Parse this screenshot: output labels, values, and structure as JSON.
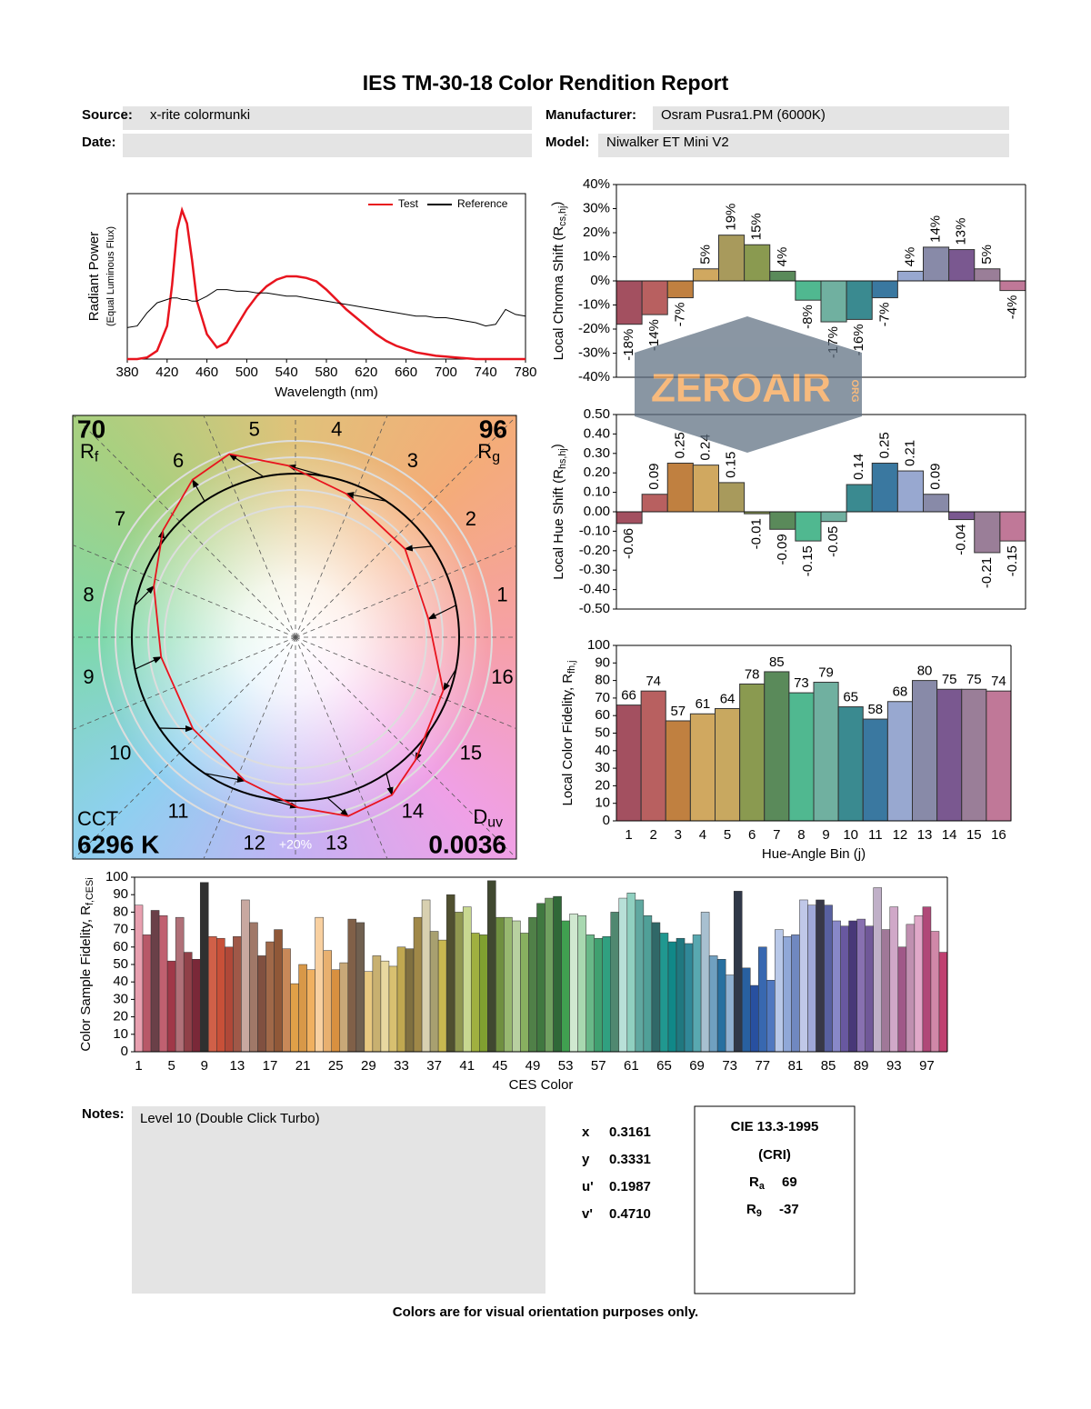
{
  "header": {
    "title": "IES TM-30-18 Color Rendition Report",
    "source_label": "Source:",
    "source": "x-rite colormunki",
    "manufacturer_label": "Manufacturer:",
    "manufacturer": "Osram Pusra1.PM (6000K)",
    "date_label": "Date:",
    "model_label": "Model:",
    "model": "Niwalker ET Mini V2"
  },
  "chart_data": [
    {
      "type": "line",
      "xlabel": "Wavelength (nm)",
      "ylabel": "Radiant Power",
      "ylabel_note": "(Equal Luminous Flux)",
      "legend": "upper right",
      "x": [
        380,
        390,
        400,
        410,
        420,
        425,
        430,
        435,
        440,
        445,
        450,
        460,
        470,
        480,
        490,
        500,
        510,
        520,
        530,
        540,
        550,
        560,
        570,
        580,
        590,
        600,
        610,
        620,
        630,
        640,
        650,
        660,
        670,
        680,
        690,
        700,
        710,
        720,
        730,
        740,
        750,
        760,
        770,
        780
      ],
      "xlim": [
        380,
        780
      ],
      "xticks": [
        380,
        420,
        460,
        500,
        540,
        580,
        620,
        660,
        700,
        740,
        780
      ],
      "ylim": [
        0,
        1
      ],
      "series": [
        {
          "name": "Test",
          "color": "#e8141e",
          "values": [
            0,
            0,
            0.01,
            0.05,
            0.2,
            0.45,
            0.78,
            0.9,
            0.82,
            0.6,
            0.35,
            0.15,
            0.07,
            0.1,
            0.2,
            0.3,
            0.38,
            0.44,
            0.48,
            0.5,
            0.5,
            0.49,
            0.47,
            0.42,
            0.36,
            0.3,
            0.25,
            0.2,
            0.15,
            0.11,
            0.08,
            0.06,
            0.04,
            0.03,
            0.02,
            0.015,
            0.01,
            0.005,
            0,
            0,
            0,
            0,
            0,
            0
          ]
        },
        {
          "name": "Reference",
          "color": "#000000",
          "values": [
            0.19,
            0.2,
            0.28,
            0.34,
            0.36,
            0.37,
            0.37,
            0.36,
            0.36,
            0.35,
            0.35,
            0.38,
            0.42,
            0.42,
            0.41,
            0.41,
            0.4,
            0.4,
            0.39,
            0.38,
            0.38,
            0.37,
            0.36,
            0.35,
            0.34,
            0.33,
            0.32,
            0.31,
            0.3,
            0.29,
            0.28,
            0.27,
            0.26,
            0.26,
            0.25,
            0.25,
            0.24,
            0.23,
            0.22,
            0.2,
            0.21,
            0.3,
            0.27,
            0.26
          ]
        }
      ]
    },
    {
      "type": "bar",
      "label_style": "rotated",
      "ylabel": {
        "text": "Local Chroma Shift (R",
        "sub": "cs,hj",
        "after": ")"
      },
      "values": [
        -18,
        -14,
        -7,
        5,
        19,
        15,
        4,
        -8,
        -17,
        -16,
        -7,
        4,
        14,
        13,
        5,
        -4
      ],
      "value_labels": [
        "-18%",
        "-14%",
        "-7%",
        "5%",
        "19%",
        "15%",
        "4%",
        "-8%",
        "-17%",
        "-16%",
        "-7%",
        "4%",
        "14%",
        "13%",
        "5%",
        "-4%"
      ],
      "colors": [
        "#a35060",
        "#b86060",
        "#c08040",
        "#d0a860",
        "#a89a5c",
        "#8a9a50",
        "#5a8a5a",
        "#50b890",
        "#70b0a0",
        "#3a8a90",
        "#3a78a0",
        "#98a8d0",
        "#888aa8",
        "#7a5890",
        "#9a7e98",
        "#c07898"
      ],
      "ylim": [
        -40,
        40
      ],
      "yticks": [
        {
          "value": -40,
          "label": "-40%"
        },
        {
          "value": -30,
          "label": "-30%"
        },
        {
          "value": -20,
          "label": "-20%"
        },
        {
          "value": -10,
          "label": "-10%"
        },
        {
          "value": 0,
          "label": "0%"
        },
        {
          "value": 10,
          "label": "10%"
        },
        {
          "value": 20,
          "label": "20%"
        },
        {
          "value": 30,
          "label": "30%"
        },
        {
          "value": 40,
          "label": "40%"
        }
      ]
    },
    {
      "type": "bar",
      "label_style": "rotated",
      "ylabel": {
        "text": "Local Hue Shift (R",
        "sub": "hs,hj",
        "after": ")"
      },
      "values": [
        -0.06,
        0.09,
        0.25,
        0.24,
        0.15,
        -0.01,
        -0.09,
        -0.15,
        -0.05,
        0.14,
        0.25,
        0.21,
        0.09,
        -0.04,
        -0.21,
        -0.15
      ],
      "colors": [
        "#a35060",
        "#b86060",
        "#c08040",
        "#d0a860",
        "#a89a5c",
        "#8a9a50",
        "#5a8a5a",
        "#50b890",
        "#70b0a0",
        "#3a8a90",
        "#3a78a0",
        "#98a8d0",
        "#888aa8",
        "#7a5890",
        "#9a7e98",
        "#c07898"
      ],
      "ylim": [
        -0.5,
        0.5
      ],
      "yticks": [
        {
          "value": -0.5,
          "label": "-0.50"
        },
        {
          "value": -0.4,
          "label": "-0.40"
        },
        {
          "value": -0.3,
          "label": "-0.30"
        },
        {
          "value": -0.2,
          "label": "-0.20"
        },
        {
          "value": -0.1,
          "label": "-0.10"
        },
        {
          "value": 0,
          "label": "0.00"
        },
        {
          "value": 0.1,
          "label": "0.10"
        },
        {
          "value": 0.2,
          "label": "0.20"
        },
        {
          "value": 0.3,
          "label": "0.30"
        },
        {
          "value": 0.4,
          "label": "0.40"
        },
        {
          "value": 0.5,
          "label": "0.50"
        }
      ]
    },
    {
      "type": "bar",
      "label_style": "above",
      "xlabel": "Hue-Angle Bin (j)",
      "ylabel": {
        "text": "Local Color Fidelity, R",
        "sub": "fh,j"
      },
      "categories": [
        1,
        2,
        3,
        4,
        5,
        6,
        7,
        8,
        9,
        10,
        11,
        12,
        13,
        14,
        15,
        16
      ],
      "values": [
        66,
        74,
        57,
        61,
        64,
        78,
        85,
        73,
        79,
        65,
        58,
        68,
        80,
        75,
        75,
        74
      ],
      "colors": [
        "#a35060",
        "#b86060",
        "#c08040",
        "#d0a860",
        "#c8a860",
        "#8a9a50",
        "#5a8a5a",
        "#50b890",
        "#70b0a0",
        "#3a8a90",
        "#3a78a0",
        "#98a8d0",
        "#888aa8",
        "#7a5890",
        "#9a7e98",
        "#c07898"
      ],
      "ylim": [
        0,
        100
      ],
      "yticks": [
        0,
        10,
        20,
        30,
        40,
        50,
        60,
        70,
        80,
        90,
        100
      ]
    },
    {
      "type": "bar",
      "xlabel": "CES Color",
      "ylabel": {
        "text": "Color Sample Fidelity, R",
        "sub": "f,CESi"
      },
      "categories": [
        1,
        null,
        null,
        null,
        5,
        null,
        null,
        null,
        9,
        null,
        null,
        null,
        13,
        null,
        null,
        null,
        17,
        null,
        null,
        null,
        21,
        null,
        null,
        null,
        25,
        null,
        null,
        null,
        29,
        null,
        null,
        null,
        33,
        null,
        null,
        null,
        37,
        null,
        null,
        null,
        41,
        null,
        null,
        null,
        45,
        null,
        null,
        null,
        49,
        null,
        null,
        null,
        53,
        null,
        null,
        null,
        57,
        null,
        null,
        null,
        61,
        null,
        null,
        null,
        65,
        null,
        null,
        null,
        69,
        null,
        null,
        null,
        73,
        null,
        null,
        null,
        77,
        null,
        null,
        null,
        81,
        null,
        null,
        null,
        85,
        null,
        null,
        null,
        89,
        null,
        null,
        null,
        93,
        null,
        null,
        null,
        97,
        null,
        null
      ],
      "values": [
        84,
        67,
        81,
        78,
        52,
        77,
        57,
        53,
        97,
        66,
        65,
        60,
        66,
        87,
        74,
        55,
        63,
        70,
        59,
        39,
        50,
        47,
        77,
        58,
        47,
        51,
        76,
        74,
        46,
        55,
        52,
        49,
        60,
        59,
        77,
        87,
        69,
        64,
        90,
        80,
        83,
        68,
        67,
        98,
        77,
        77,
        75,
        68,
        77,
        85,
        88,
        89,
        75,
        79,
        78,
        67,
        65,
        66,
        80,
        88,
        91,
        87,
        78,
        74,
        68,
        63,
        65,
        62,
        67,
        80,
        55,
        53,
        44,
        92,
        48,
        38,
        60,
        41,
        70,
        66,
        67,
        87,
        84,
        87,
        84,
        75,
        72,
        75,
        76,
        72,
        94,
        70,
        83,
        60,
        73,
        78,
        83,
        69,
        57
      ],
      "colors": [
        "#e8a0b0",
        "#b85868",
        "#6a4048",
        "#c06070",
        "#a03848",
        "#b07078",
        "#904048",
        "#7a2838",
        "#303030",
        "#d06048",
        "#c85038",
        "#b04838",
        "#a05848",
        "#c8a8a0",
        "#a07868",
        "#805040",
        "#a06848",
        "#905838",
        "#c88858",
        "#e0a048",
        "#d89848",
        "#f0b060",
        "#f8d0a0",
        "#e8b070",
        "#d89040",
        "#c8a878",
        "#806048",
        "#706050",
        "#e8c880",
        "#c8b070",
        "#e8d8a0",
        "#d8c070",
        "#c0a850",
        "#807040",
        "#a08848",
        "#d8d0b0",
        "#a8a070",
        "#c8b850",
        "#505030",
        "#909850",
        "#c8d890",
        "#a0b040",
        "#80a030",
        "#404830",
        "#709040",
        "#98b870",
        "#b8d0a0",
        "#88b060",
        "#508048",
        "#407840",
        "#70a060",
        "#306838",
        "#40a050",
        "#d0e8d0",
        "#a8d8b0",
        "#68b888",
        "#40a070",
        "#30a080",
        "#508870",
        "#b8e0d8",
        "#90d0c0",
        "#60a8a0",
        "#50a098",
        "#306868",
        "#209890",
        "#108888",
        "#207880",
        "#308898",
        "#58a8b0",
        "#a8c0d0",
        "#70a0c0",
        "#2870a0",
        "#90b0d0",
        "#303848",
        "#2860a0",
        "#2850a0",
        "#3868b0",
        "#5078c0",
        "#b8c8e8",
        "#90a8d8",
        "#7088c0",
        "#c0c8e8",
        "#a0a8d8",
        "#383848",
        "#5860a0",
        "#8888c8",
        "#6858a0",
        "#483878",
        "#8870b0",
        "#705898",
        "#c0b0c8",
        "#a07898",
        "#d0a8c8",
        "#a05888",
        "#c090b0",
        "#e0a8c8",
        "#b04878",
        "#d088a8",
        "#c04070"
      ],
      "ylim": [
        0,
        100
      ],
      "yticks": [
        0,
        10,
        20,
        30,
        40,
        50,
        60,
        70,
        80,
        90,
        100
      ]
    },
    {
      "type": "vector",
      "categories": [
        1,
        2,
        3,
        4,
        5,
        6,
        7,
        8,
        9,
        10,
        11,
        12,
        13,
        14,
        15,
        16
      ],
      "rf": "70",
      "rf_symbol": {
        "text": "R",
        "sub": "f"
      },
      "rg": "96",
      "rg_symbol": {
        "text": "R",
        "sub": "g"
      },
      "cct_label": "CCT",
      "cct": "6296 K",
      "duv_symbol": {
        "text": "D",
        "sub": "uv"
      },
      "duv": "0.0036",
      "ring_label": "+20%",
      "test_color": "#e8141e"
    }
  ],
  "notes": {
    "label": "Notes:",
    "text": "Level 10 (Double Click Turbo)"
  },
  "colorimetry": [
    {
      "label": "x",
      "value": "0.3161"
    },
    {
      "label": "y",
      "value": "0.3331"
    },
    {
      "label": "u'",
      "value": "0.1987"
    },
    {
      "label": "v'",
      "value": "0.4710"
    }
  ],
  "cri": {
    "title": "CIE 13.3-1995",
    "subtitle": "(CRI)",
    "ra": {
      "text": "R",
      "sub": "a"
    },
    "ra_value": "69",
    "r9": {
      "text": "R",
      "sub": "9"
    },
    "r9_value": "-37"
  },
  "footer": "Colors are for visual orientation purposes only.",
  "watermark": {
    "text": "ZEROAIR",
    "suffix": "ORG"
  }
}
